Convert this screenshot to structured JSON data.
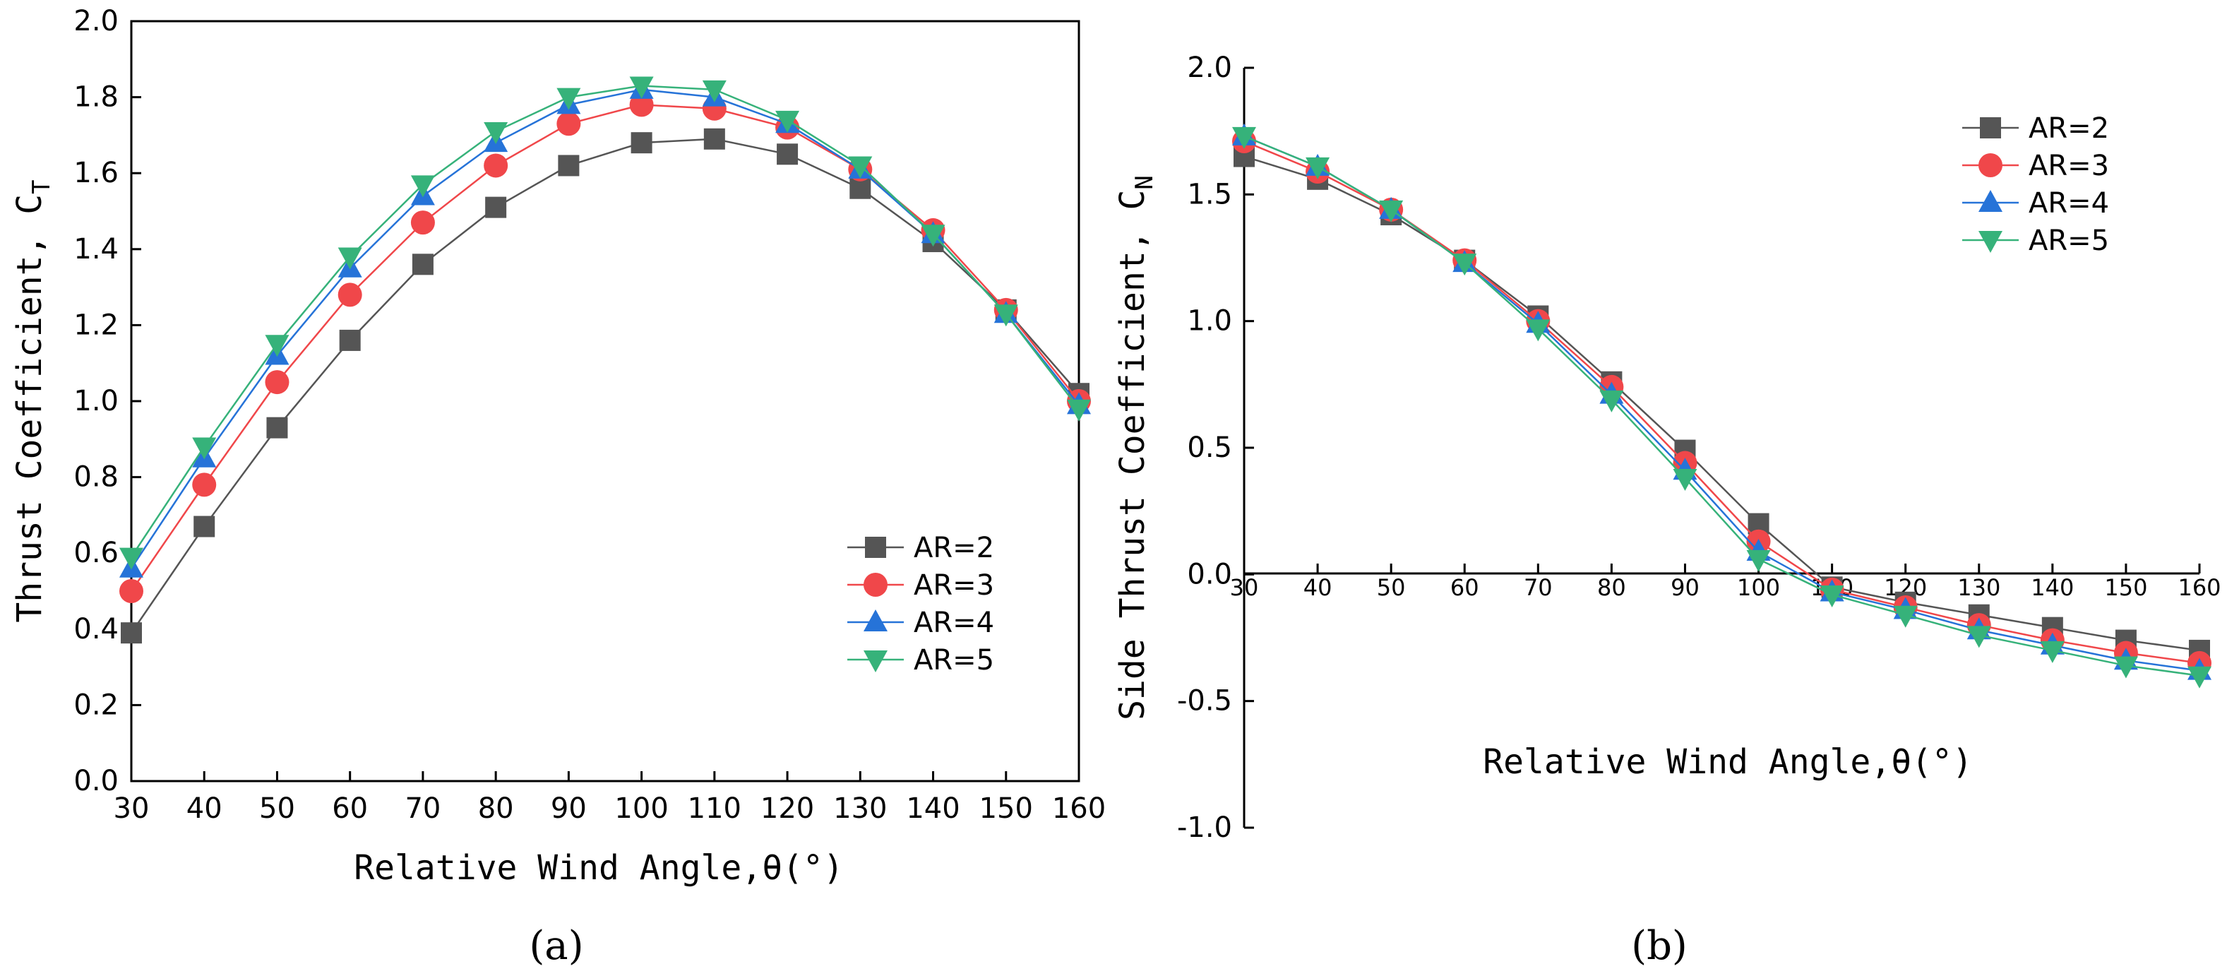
{
  "figure": {
    "caption_a": "(a)",
    "caption_b": "(b)"
  },
  "chart_data": [
    {
      "id": "a",
      "type": "line",
      "title": "",
      "xlabel": "Relative Wind Angle,θ(°)",
      "ylabel_main": "Thrust Coefficient, C",
      "ylabel_sub": "T",
      "xlim": [
        30,
        160
      ],
      "ylim": [
        0,
        2.0
      ],
      "x": [
        30,
        40,
        50,
        60,
        70,
        80,
        90,
        100,
        110,
        120,
        130,
        140,
        150,
        160
      ],
      "xticks": [
        "30",
        "40",
        "50",
        "60",
        "70",
        "80",
        "90",
        "100",
        "110",
        "120",
        "130",
        "140",
        "150",
        "160"
      ],
      "yticks": [
        "0.0",
        "0.2",
        "0.4",
        "0.6",
        "0.8",
        "1.0",
        "1.2",
        "1.4",
        "1.6",
        "1.8",
        "2.0"
      ],
      "legend_position": "bottom-right",
      "series": [
        {
          "name": "AR=2",
          "marker": "square",
          "color": "#555555",
          "values": [
            0.39,
            0.67,
            0.93,
            1.16,
            1.36,
            1.51,
            1.62,
            1.68,
            1.69,
            1.65,
            1.56,
            1.42,
            1.24,
            1.02
          ]
        },
        {
          "name": "AR=3",
          "marker": "circle",
          "color": "#f0474a",
          "values": [
            0.5,
            0.78,
            1.05,
            1.28,
            1.47,
            1.62,
            1.73,
            1.78,
            1.77,
            1.72,
            1.61,
            1.45,
            1.24,
            1.0
          ]
        },
        {
          "name": "AR=4",
          "marker": "triangle-up",
          "color": "#2673d8",
          "values": [
            0.56,
            0.85,
            1.12,
            1.35,
            1.54,
            1.68,
            1.78,
            1.82,
            1.8,
            1.73,
            1.61,
            1.44,
            1.23,
            0.99
          ]
        },
        {
          "name": "AR=5",
          "marker": "triangle-down",
          "color": "#36b27a",
          "values": [
            0.59,
            0.88,
            1.15,
            1.38,
            1.57,
            1.71,
            1.8,
            1.83,
            1.82,
            1.74,
            1.62,
            1.44,
            1.23,
            0.98
          ]
        }
      ]
    },
    {
      "id": "b",
      "type": "line",
      "title": "",
      "xlabel": "Relative Wind Angle,θ(°)",
      "ylabel_main": "Side Thrust Coefficient, C",
      "ylabel_sub": "N",
      "xlim": [
        30,
        160
      ],
      "ylim": [
        -1.0,
        2.0
      ],
      "x": [
        30,
        40,
        50,
        60,
        70,
        80,
        90,
        100,
        110,
        120,
        130,
        140,
        150,
        160
      ],
      "xticks": [
        "30",
        "40",
        "50",
        "60",
        "70",
        "80",
        "90",
        "100",
        "110",
        "120",
        "130",
        "140",
        "150",
        "160"
      ],
      "yticks": [
        "-1.0",
        "-0.5",
        "0.0",
        "0.5",
        "1.0",
        "1.5",
        "2.0"
      ],
      "legend_position": "top-right",
      "series": [
        {
          "name": "AR=2",
          "marker": "square",
          "color": "#555555",
          "values": [
            1.65,
            1.56,
            1.42,
            1.24,
            1.02,
            0.76,
            0.49,
            0.2,
            -0.05,
            -0.11,
            -0.16,
            -0.21,
            -0.26,
            -0.3
          ]
        },
        {
          "name": "AR=3",
          "marker": "circle",
          "color": "#f0474a",
          "values": [
            1.71,
            1.59,
            1.44,
            1.24,
            1.0,
            0.74,
            0.44,
            0.13,
            -0.06,
            -0.13,
            -0.2,
            -0.26,
            -0.31,
            -0.35
          ]
        },
        {
          "name": "AR=4",
          "marker": "triangle-up",
          "color": "#2673d8",
          "values": [
            1.73,
            1.61,
            1.44,
            1.23,
            0.99,
            0.71,
            0.41,
            0.09,
            -0.07,
            -0.14,
            -0.22,
            -0.28,
            -0.34,
            -0.38
          ]
        },
        {
          "name": "AR=5",
          "marker": "triangle-down",
          "color": "#36b27a",
          "values": [
            1.73,
            1.61,
            1.44,
            1.23,
            0.97,
            0.69,
            0.38,
            0.06,
            -0.08,
            -0.16,
            -0.24,
            -0.3,
            -0.36,
            -0.4
          ]
        }
      ]
    }
  ]
}
